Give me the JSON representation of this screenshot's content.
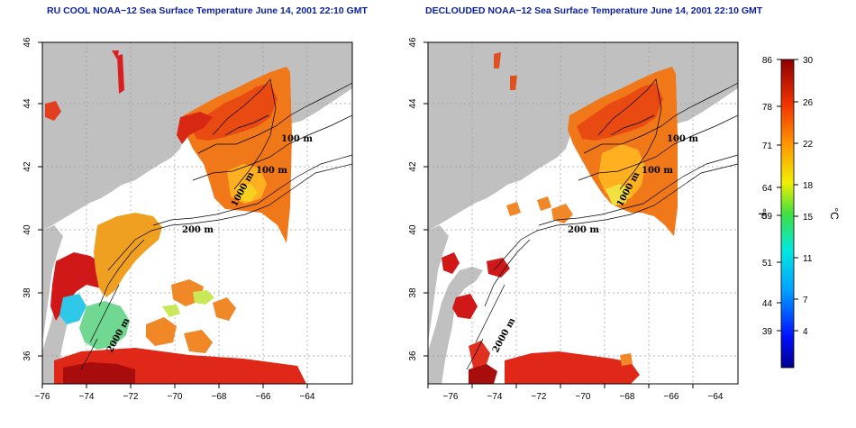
{
  "titles": {
    "left": "RU COOL NOAA−12 Sea Surface Temperature June 14, 2001 22:10 GMT",
    "right": "DECLOUDED NOAA−12 Sea Surface Temperature June 14, 2001 22:10 GMT"
  },
  "map_axes": {
    "x_ticks": [
      "−76",
      "−74",
      "−72",
      "−70",
      "−68",
      "−66",
      "−64"
    ],
    "y_ticks": [
      "36",
      "38",
      "40",
      "42",
      "44",
      "46"
    ]
  },
  "isobath_labels": {
    "m100a": "100 m",
    "m100b": "100 m",
    "m200": "200 m",
    "m2000": "2000 m",
    "m1000": "1000 m"
  },
  "colorbar": {
    "fahrenheit_label": "°F",
    "celsius_label": "°C",
    "fahrenheit_ticks": [
      "86",
      "78",
      "71",
      "64",
      "59",
      "51",
      "44",
      "39"
    ],
    "celsius_ticks": [
      "30",
      "26",
      "22",
      "18",
      "15",
      "11",
      "7",
      "4"
    ]
  },
  "colors": {
    "land": "#c0c0c0",
    "ocean": "#ffffff",
    "title": "#0a1fa0",
    "warm_red": "#c81010",
    "warm_orange": "#f07818"
  }
}
